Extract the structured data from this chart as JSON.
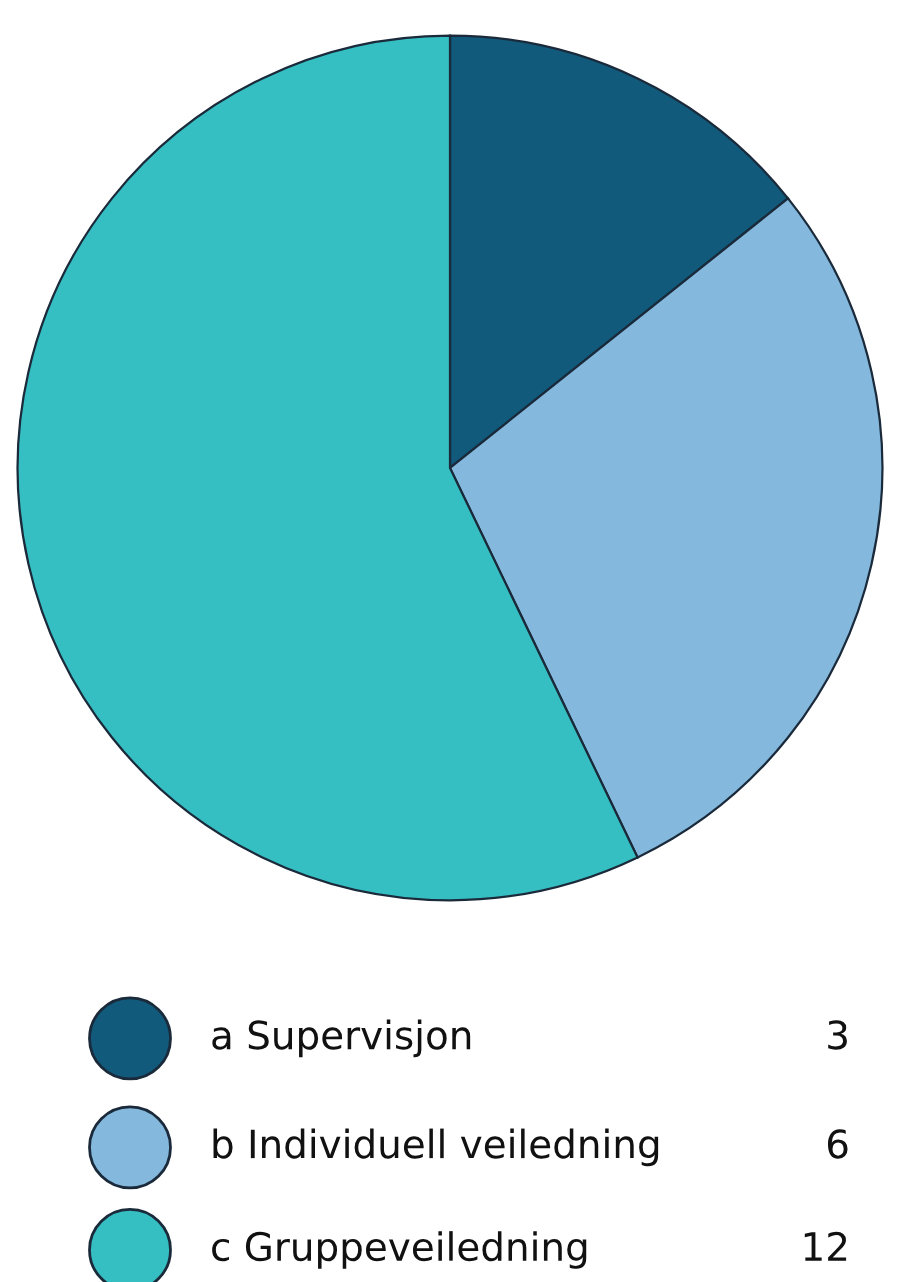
{
  "chart_data": {
    "type": "pie",
    "categories": [
      "a Supervisjon",
      "b Individuell veiledning",
      "c Gruppeveiledning"
    ],
    "values": [
      3,
      6,
      12
    ],
    "colors": [
      "#115a7c",
      "#84b8dd",
      "#36bfc2"
    ],
    "data_labels": true,
    "legend": "bottom"
  }
}
